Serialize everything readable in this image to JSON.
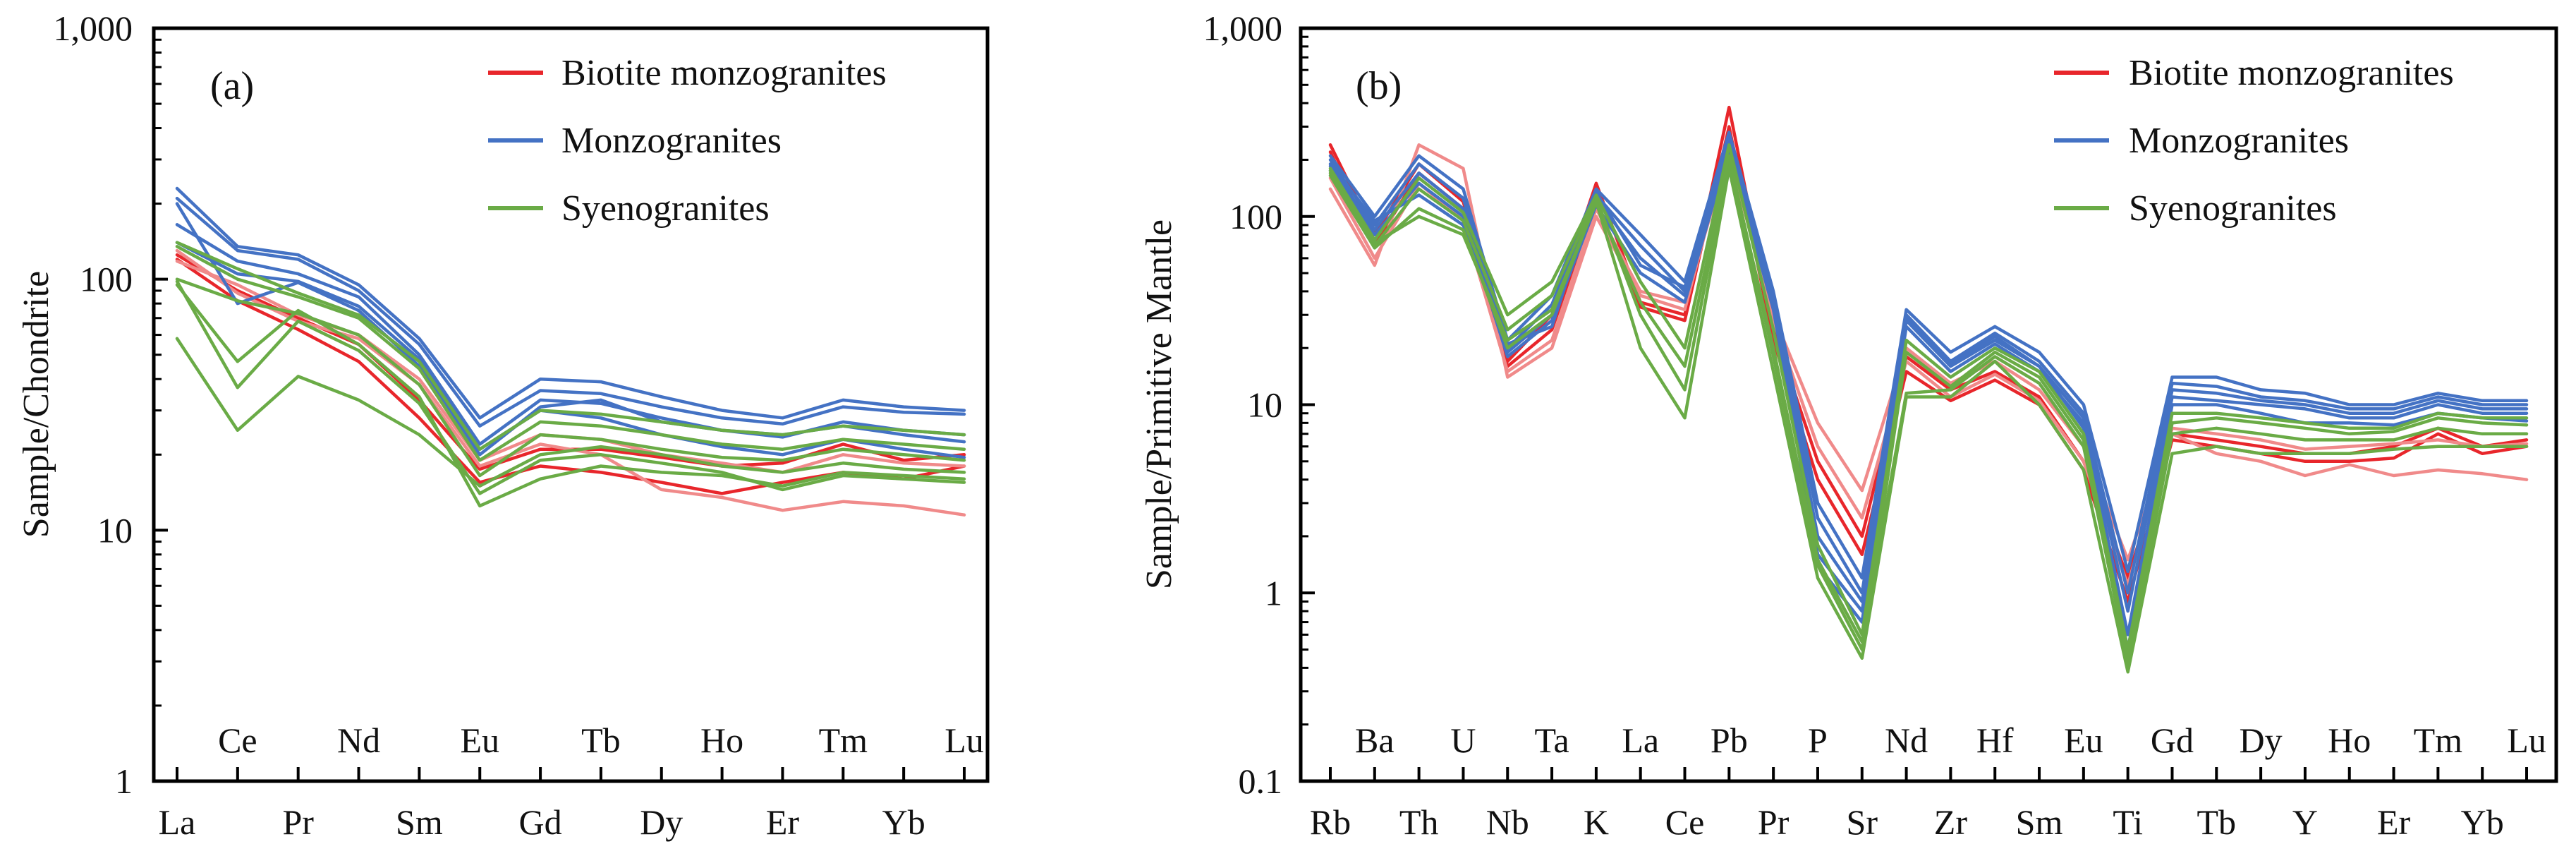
{
  "figure": {
    "panels": [
      "chondrite",
      "primitive-mantle"
    ]
  },
  "chart_data": [
    {
      "id": "chondrite",
      "type": "line",
      "panel_label": "(a)",
      "ylabel": "Sample/Chondrite",
      "yscale": "log",
      "ylim": [
        1,
        1000
      ],
      "ytick_labels": [
        "1",
        "10",
        "100",
        "1,000"
      ],
      "categories": [
        "La",
        "Ce",
        "Pr",
        "Nd",
        "Sm",
        "Eu",
        "Gd",
        "Tb",
        "Dy",
        "Ho",
        "Er",
        "Tm",
        "Yb",
        "Lu"
      ],
      "legend": [
        {
          "label": "Biotite monzogranites",
          "color": "#e8262b"
        },
        {
          "label": "Monzogranites",
          "color": "#4472c4"
        },
        {
          "label": "Syenogranites",
          "color": "#6aab46"
        }
      ],
      "series": [
        {
          "group": "Biotite monzogranites",
          "color": "#e8262b",
          "values": [
            120,
            82,
            63,
            47,
            28,
            15.5,
            18,
            17,
            15.5,
            14,
            15.5,
            17,
            16,
            18
          ]
        },
        {
          "group": "Biotite monzogranites",
          "color": "#e8262b",
          "values": [
            125,
            90,
            70,
            55,
            33,
            17.5,
            21,
            21,
            19.5,
            18,
            18.5,
            22,
            19,
            20
          ]
        },
        {
          "group": "Biotite monzogranites",
          "color": "#f08a8a",
          "values": [
            130,
            88,
            68,
            58,
            38,
            18,
            22,
            20,
            14.5,
            13.5,
            12,
            13,
            12.5,
            11.5
          ]
        },
        {
          "group": "Biotite monzogranites",
          "color": "#f08a8a",
          "values": [
            118,
            95,
            72,
            60,
            40,
            19,
            24,
            23,
            20,
            18.5,
            17,
            20,
            18.5,
            18
          ]
        },
        {
          "group": "Monzogranites",
          "color": "#4472c4",
          "values": [
            230,
            135,
            125,
            95,
            58,
            28,
            40,
            39,
            34,
            30,
            28,
            33,
            31,
            30
          ]
        },
        {
          "group": "Monzogranites",
          "color": "#4472c4",
          "values": [
            210,
            130,
            120,
            90,
            55,
            26,
            36,
            35,
            31,
            28,
            26.5,
            31,
            29.5,
            29
          ]
        },
        {
          "group": "Monzogranites",
          "color": "#4472c4",
          "values": [
            165,
            118,
            105,
            85,
            50,
            22,
            33,
            32,
            28,
            25,
            23.5,
            27,
            25,
            24
          ]
        },
        {
          "group": "Monzogranites",
          "color": "#4472c4",
          "values": [
            140,
            105,
            98,
            78,
            48,
            21,
            30,
            28,
            24,
            21.5,
            20,
            23,
            21,
            19.5
          ]
        },
        {
          "group": "Monzogranites",
          "color": "#4472c4",
          "values": [
            200,
            80,
            97,
            75,
            45,
            20,
            31,
            33,
            27,
            25,
            24,
            26,
            24,
            22.5
          ]
        },
        {
          "group": "Syenogranites",
          "color": "#6aab46",
          "values": [
            140,
            110,
            88,
            72,
            47,
            21,
            30,
            29,
            27,
            25,
            24,
            26,
            25,
            24
          ]
        },
        {
          "group": "Syenogranites",
          "color": "#6aab46",
          "values": [
            135,
            100,
            85,
            70,
            44,
            19,
            27,
            26,
            24,
            22,
            21,
            23,
            22,
            21
          ]
        },
        {
          "group": "Syenogranites",
          "color": "#6aab46",
          "values": [
            100,
            82,
            73,
            60,
            38,
            16.5,
            24,
            23,
            21,
            19.5,
            19,
            21,
            20,
            19
          ]
        },
        {
          "group": "Syenogranites",
          "color": "#6aab46",
          "values": [
            95,
            47,
            75,
            55,
            34,
            12.5,
            16,
            18,
            17,
            16.5,
            15,
            17,
            16.5,
            16
          ]
        },
        {
          "group": "Syenogranites",
          "color": "#6aab46",
          "values": [
            58,
            25,
            41,
            33,
            24,
            15,
            20,
            21.5,
            20,
            18,
            17,
            18.5,
            17.5,
            17
          ]
        },
        {
          "group": "Syenogranites",
          "color": "#6aab46",
          "values": [
            98,
            37,
            68,
            52,
            32,
            14,
            19,
            20,
            18.5,
            17,
            14.5,
            16.5,
            16,
            15.5
          ]
        }
      ]
    },
    {
      "id": "primitive-mantle",
      "type": "line",
      "panel_label": "(b)",
      "ylabel": "Sample/Primitive Mantle",
      "yscale": "log",
      "ylim": [
        0.1,
        1000
      ],
      "ytick_labels": [
        "0.1",
        "1",
        "10",
        "100",
        "1,000"
      ],
      "categories": [
        "Rb",
        "Ba",
        "Th",
        "U",
        "Nb",
        "Ta",
        "K",
        "La",
        "Ce",
        "Pb",
        "Pr",
        "P",
        "Sr",
        "Nd",
        "Zr",
        "Hf",
        "Sm",
        "Eu",
        "Ti",
        "Gd",
        "Tb",
        "Dy",
        "Y",
        "Ho",
        "Er",
        "Tm",
        "Yb",
        "Lu"
      ],
      "legend": [
        {
          "label": "Biotite monzogranites",
          "color": "#e8262b"
        },
        {
          "label": "Monzogranites",
          "color": "#4472c4"
        },
        {
          "label": "Syenogranites",
          "color": "#6aab46"
        }
      ],
      "series": [
        {
          "group": "Biotite monzogranites",
          "color": "#e8262b",
          "values": [
            240,
            80,
            190,
            120,
            17,
            30,
            150,
            35,
            30,
            380,
            25,
            5,
            2,
            18,
            12,
            15,
            11,
            5,
            1.2,
            7,
            6.5,
            6,
            5.5,
            5.5,
            6,
            7.5,
            6,
            6.5
          ]
        },
        {
          "group": "Biotite monzogranites",
          "color": "#e8262b",
          "values": [
            220,
            70,
            170,
            110,
            16,
            25,
            120,
            33,
            28,
            300,
            22,
            4,
            1.6,
            15,
            10.5,
            13.5,
            10,
            4.5,
            0.9,
            6.5,
            6,
            5.5,
            5,
            5,
            5.2,
            7,
            5.5,
            6
          ]
        },
        {
          "group": "Biotite monzogranites",
          "color": "#f08a8a",
          "values": [
            140,
            55,
            240,
            180,
            14,
            20,
            100,
            38,
            32,
            250,
            30,
            8,
            3.5,
            20,
            13,
            17,
            12,
            6,
            1.5,
            7,
            5.5,
            5,
            4.2,
            4.8,
            4.2,
            4.5,
            4.3,
            4
          ]
        },
        {
          "group": "Biotite monzogranites",
          "color": "#f08a8a",
          "values": [
            160,
            60,
            150,
            95,
            15,
            22,
            110,
            40,
            35,
            220,
            28,
            6,
            2.5,
            17,
            11,
            14.5,
            10.5,
            5,
            1.1,
            7.5,
            7,
            6.5,
            5.8,
            6,
            6.2,
            6.5,
            6,
            6.2
          ]
        },
        {
          "group": "Monzogranites",
          "color": "#4472c4",
          "values": [
            210,
            100,
            210,
            140,
            22,
            38,
            140,
            80,
            45,
            280,
            40,
            3,
            1.2,
            32,
            19,
            26,
            19,
            10,
            1.3,
            14,
            14,
            12,
            11.5,
            10,
            10,
            11.5,
            10.5,
            10.5
          ]
        },
        {
          "group": "Monzogranites",
          "color": "#4472c4",
          "values": [
            200,
            90,
            190,
            125,
            20,
            34,
            130,
            70,
            40,
            260,
            38,
            2.5,
            1.0,
            30,
            17,
            24,
            17,
            9,
            1.0,
            13,
            12.5,
            11,
            10.5,
            9.5,
            9.5,
            11,
            10,
            10
          ]
        },
        {
          "group": "Monzogranites",
          "color": "#4472c4",
          "values": [
            185,
            85,
            170,
            110,
            19,
            30,
            125,
            60,
            38,
            240,
            35,
            2.0,
            0.9,
            28,
            16,
            22,
            16,
            8.5,
            0.8,
            12,
            11.5,
            10.5,
            10,
            9,
            9,
            10.5,
            9.5,
            9.5
          ]
        },
        {
          "group": "Monzogranites",
          "color": "#4472c4",
          "values": [
            175,
            80,
            150,
            100,
            18,
            28,
            115,
            50,
            35,
            230,
            32,
            1.6,
            0.8,
            26,
            15,
            21,
            15,
            8,
            0.6,
            11,
            10.5,
            10,
            9.5,
            8.5,
            8.5,
            10,
            9,
            9
          ]
        },
        {
          "group": "Monzogranites",
          "color": "#4472c4",
          "values": [
            190,
            95,
            130,
            90,
            21,
            26,
            135,
            55,
            42,
            250,
            36,
            1.4,
            0.7,
            29,
            16.5,
            23,
            16,
            7.5,
            0.5,
            10,
            10,
            9,
            8,
            8,
            7.8,
            9,
            8.5,
            8.2
          ]
        },
        {
          "group": "Syenogranites",
          "color": "#6aab46",
          "values": [
            180,
            75,
            160,
            105,
            30,
            45,
            130,
            45,
            20,
            240,
            25,
            1.8,
            0.6,
            22,
            14,
            20,
            15,
            7,
            0.5,
            9,
            9,
            8.5,
            8,
            7.5,
            7.5,
            9,
            8.5,
            8.5
          ]
        },
        {
          "group": "Syenogranites",
          "color": "#6aab46",
          "values": [
            170,
            70,
            140,
            95,
            25,
            38,
            125,
            30,
            12,
            200,
            20,
            1.5,
            0.55,
            11.5,
            12,
            18,
            13,
            6,
            0.45,
            8,
            8.5,
            8,
            7.5,
            7,
            7.2,
            8.5,
            8,
            7.8
          ]
        },
        {
          "group": "Syenogranites",
          "color": "#6aab46",
          "values": [
            165,
            68,
            110,
            85,
            20,
            30,
            120,
            20,
            8.5,
            180,
            15,
            1.2,
            0.45,
            11,
            11,
            17,
            10,
            4.5,
            0.38,
            5.5,
            6,
            5.5,
            5.5,
            5.5,
            5.8,
            6,
            6,
            6
          ]
        },
        {
          "group": "Syenogranites",
          "color": "#6aab46",
          "values": [
            175,
            72,
            100,
            80,
            22,
            32,
            118,
            35,
            16,
            210,
            18,
            1.4,
            0.5,
            19,
            12.5,
            19,
            14,
            6.5,
            0.42,
            7,
            7.5,
            7,
            6.5,
            6.5,
            6.5,
            7.5,
            7,
            7
          ]
        }
      ]
    }
  ]
}
